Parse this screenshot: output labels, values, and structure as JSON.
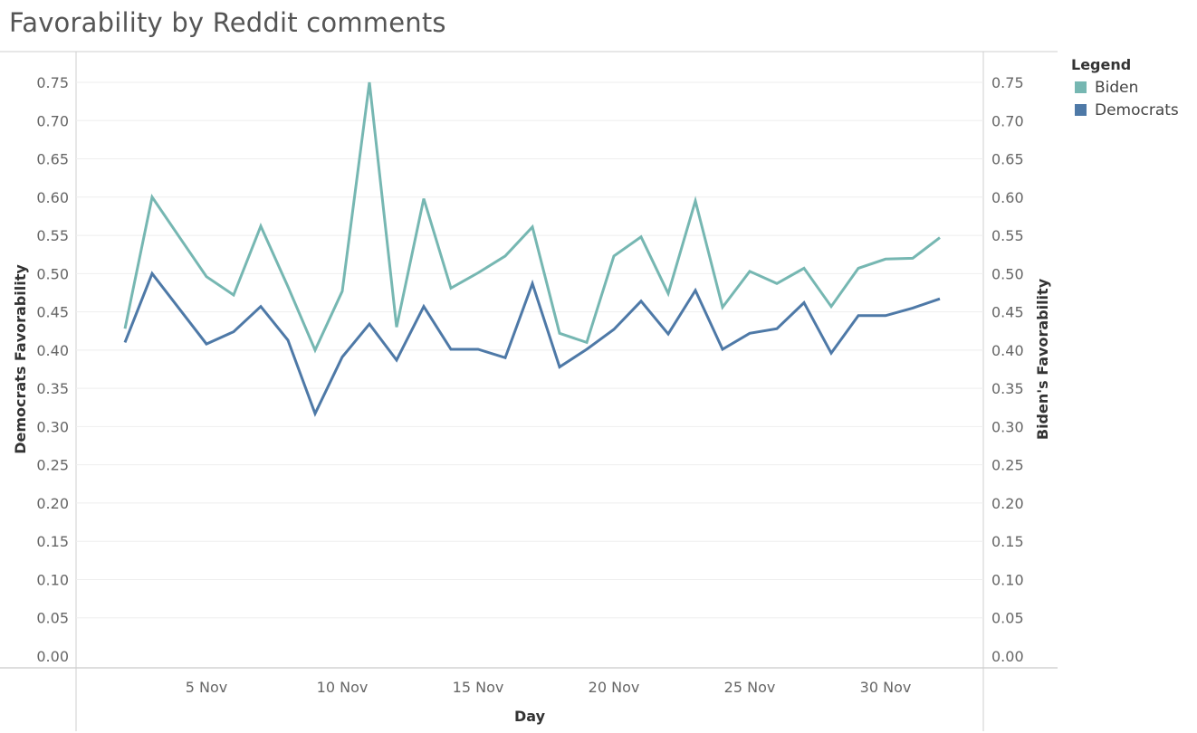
{
  "chart_data": {
    "type": "line",
    "title": "Favorability by Reddit comments",
    "xlabel": "Day",
    "ylabel_left": "Democrats  Favorability",
    "ylabel_right": "Biden's Favorability",
    "ylim": [
      0,
      0.75
    ],
    "y_ticks": [
      "0.00",
      "0.05",
      "0.10",
      "0.15",
      "0.20",
      "0.25",
      "0.30",
      "0.35",
      "0.40",
      "0.45",
      "0.50",
      "0.55",
      "0.60",
      "0.65",
      "0.70",
      "0.75"
    ],
    "x_ticks": [
      {
        "day": 5,
        "label": "5 Nov"
      },
      {
        "day": 10,
        "label": "10 Nov"
      },
      {
        "day": 15,
        "label": "15 Nov"
      },
      {
        "day": 20,
        "label": "20 Nov"
      },
      {
        "day": 25,
        "label": "25 Nov"
      },
      {
        "day": 30,
        "label": "30 Nov"
      }
    ],
    "x_range_days": [
      0.2,
      33.6
    ],
    "x_days": [
      2,
      3,
      4,
      5,
      6,
      7,
      8,
      9,
      10,
      11,
      12,
      13,
      14,
      15,
      16,
      17,
      18,
      19,
      20,
      21,
      22,
      23,
      24,
      25,
      26,
      27,
      28,
      29,
      30,
      31,
      32
    ],
    "grid": "horizontal",
    "legend_position": "right",
    "legend_title": "Legend",
    "series": [
      {
        "name": "Biden",
        "color": "#76b7b2",
        "axis": "right",
        "values": [
          0.428,
          0.6,
          0.548,
          0.496,
          0.472,
          0.562,
          0.483,
          0.4,
          0.477,
          0.75,
          0.43,
          0.598,
          0.481,
          0.501,
          0.523,
          0.561,
          0.422,
          0.41,
          0.523,
          0.548,
          0.474,
          0.595,
          0.456,
          0.503,
          0.487,
          0.507,
          0.457,
          0.507,
          0.519,
          0.52,
          0.547
        ]
      },
      {
        "name": "Democrats",
        "color": "#4e79a7",
        "axis": "left",
        "values": [
          0.41,
          0.5,
          0.454,
          0.408,
          0.424,
          0.457,
          0.413,
          0.317,
          0.391,
          0.434,
          0.387,
          0.457,
          0.401,
          0.401,
          0.39,
          0.487,
          0.378,
          0.401,
          0.427,
          0.464,
          0.421,
          0.478,
          0.401,
          0.422,
          0.428,
          0.462,
          0.396,
          0.445,
          0.445,
          0.455,
          0.467
        ]
      }
    ]
  }
}
